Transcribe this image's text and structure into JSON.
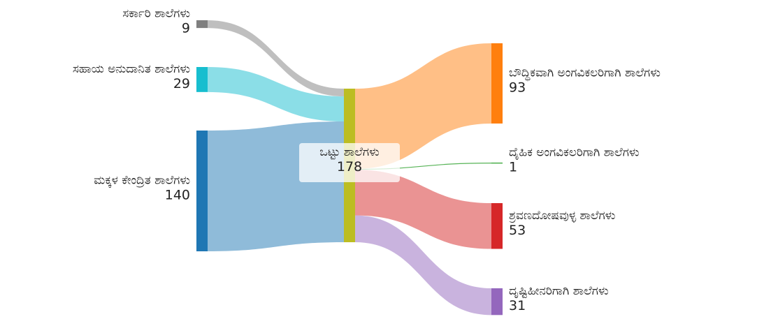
{
  "chart_data": {
    "type": "sankey",
    "nodes": [
      {
        "name": "ಸರ್ಕಾರಿ ಶಾಲೆಗಳು",
        "value": 9,
        "color": "#7f7f7f"
      },
      {
        "name": "ಸಹಾಯ ಅನುದಾನಿತ ಶಾಲೆಗಳು",
        "value": 29,
        "color": "#17becf"
      },
      {
        "name": "ಮಕ್ಕಳ ಕೇಂದ್ರಿತ ಶಾಲೆಗಳು",
        "value": 140,
        "color": "#1f77b4"
      },
      {
        "name": "ಒಟ್ಟು ಶಾಲೆಗಳು",
        "value": 178,
        "color": "#bcbd22"
      },
      {
        "name": "ಬೌದ್ಧಿಕವಾಗಿ ಅಂಗವಿಕಲರಿಗಾಗಿ ಶಾಲೆಗಳು",
        "value": 93,
        "color": "#ff7f0e"
      },
      {
        "name": "ದೈಹಿಕ ಅಂಗವಿಕಲರಿಗಾಗಿ ಶಾಲೆಗಳು",
        "value": 1,
        "color": "#2ca02c"
      },
      {
        "name": "ಶ್ರವಣದೋಷವುಳ್ಳ ಶಾಲೆಗಳು",
        "value": 53,
        "color": "#d62728"
      },
      {
        "name": "ದೃಷ್ಟಿಹೀನರಿಗಾಗಿ ಶಾಲೆಗಳು",
        "value": 31,
        "color": "#9467bd"
      }
    ],
    "links": [
      {
        "source": 0,
        "target": 3
      },
      {
        "source": 1,
        "target": 3
      },
      {
        "source": 2,
        "target": 3
      },
      {
        "source": 3,
        "target": 4
      },
      {
        "source": 3,
        "target": 5
      },
      {
        "source": 3,
        "target": 6
      },
      {
        "source": 3,
        "target": 7
      }
    ]
  }
}
